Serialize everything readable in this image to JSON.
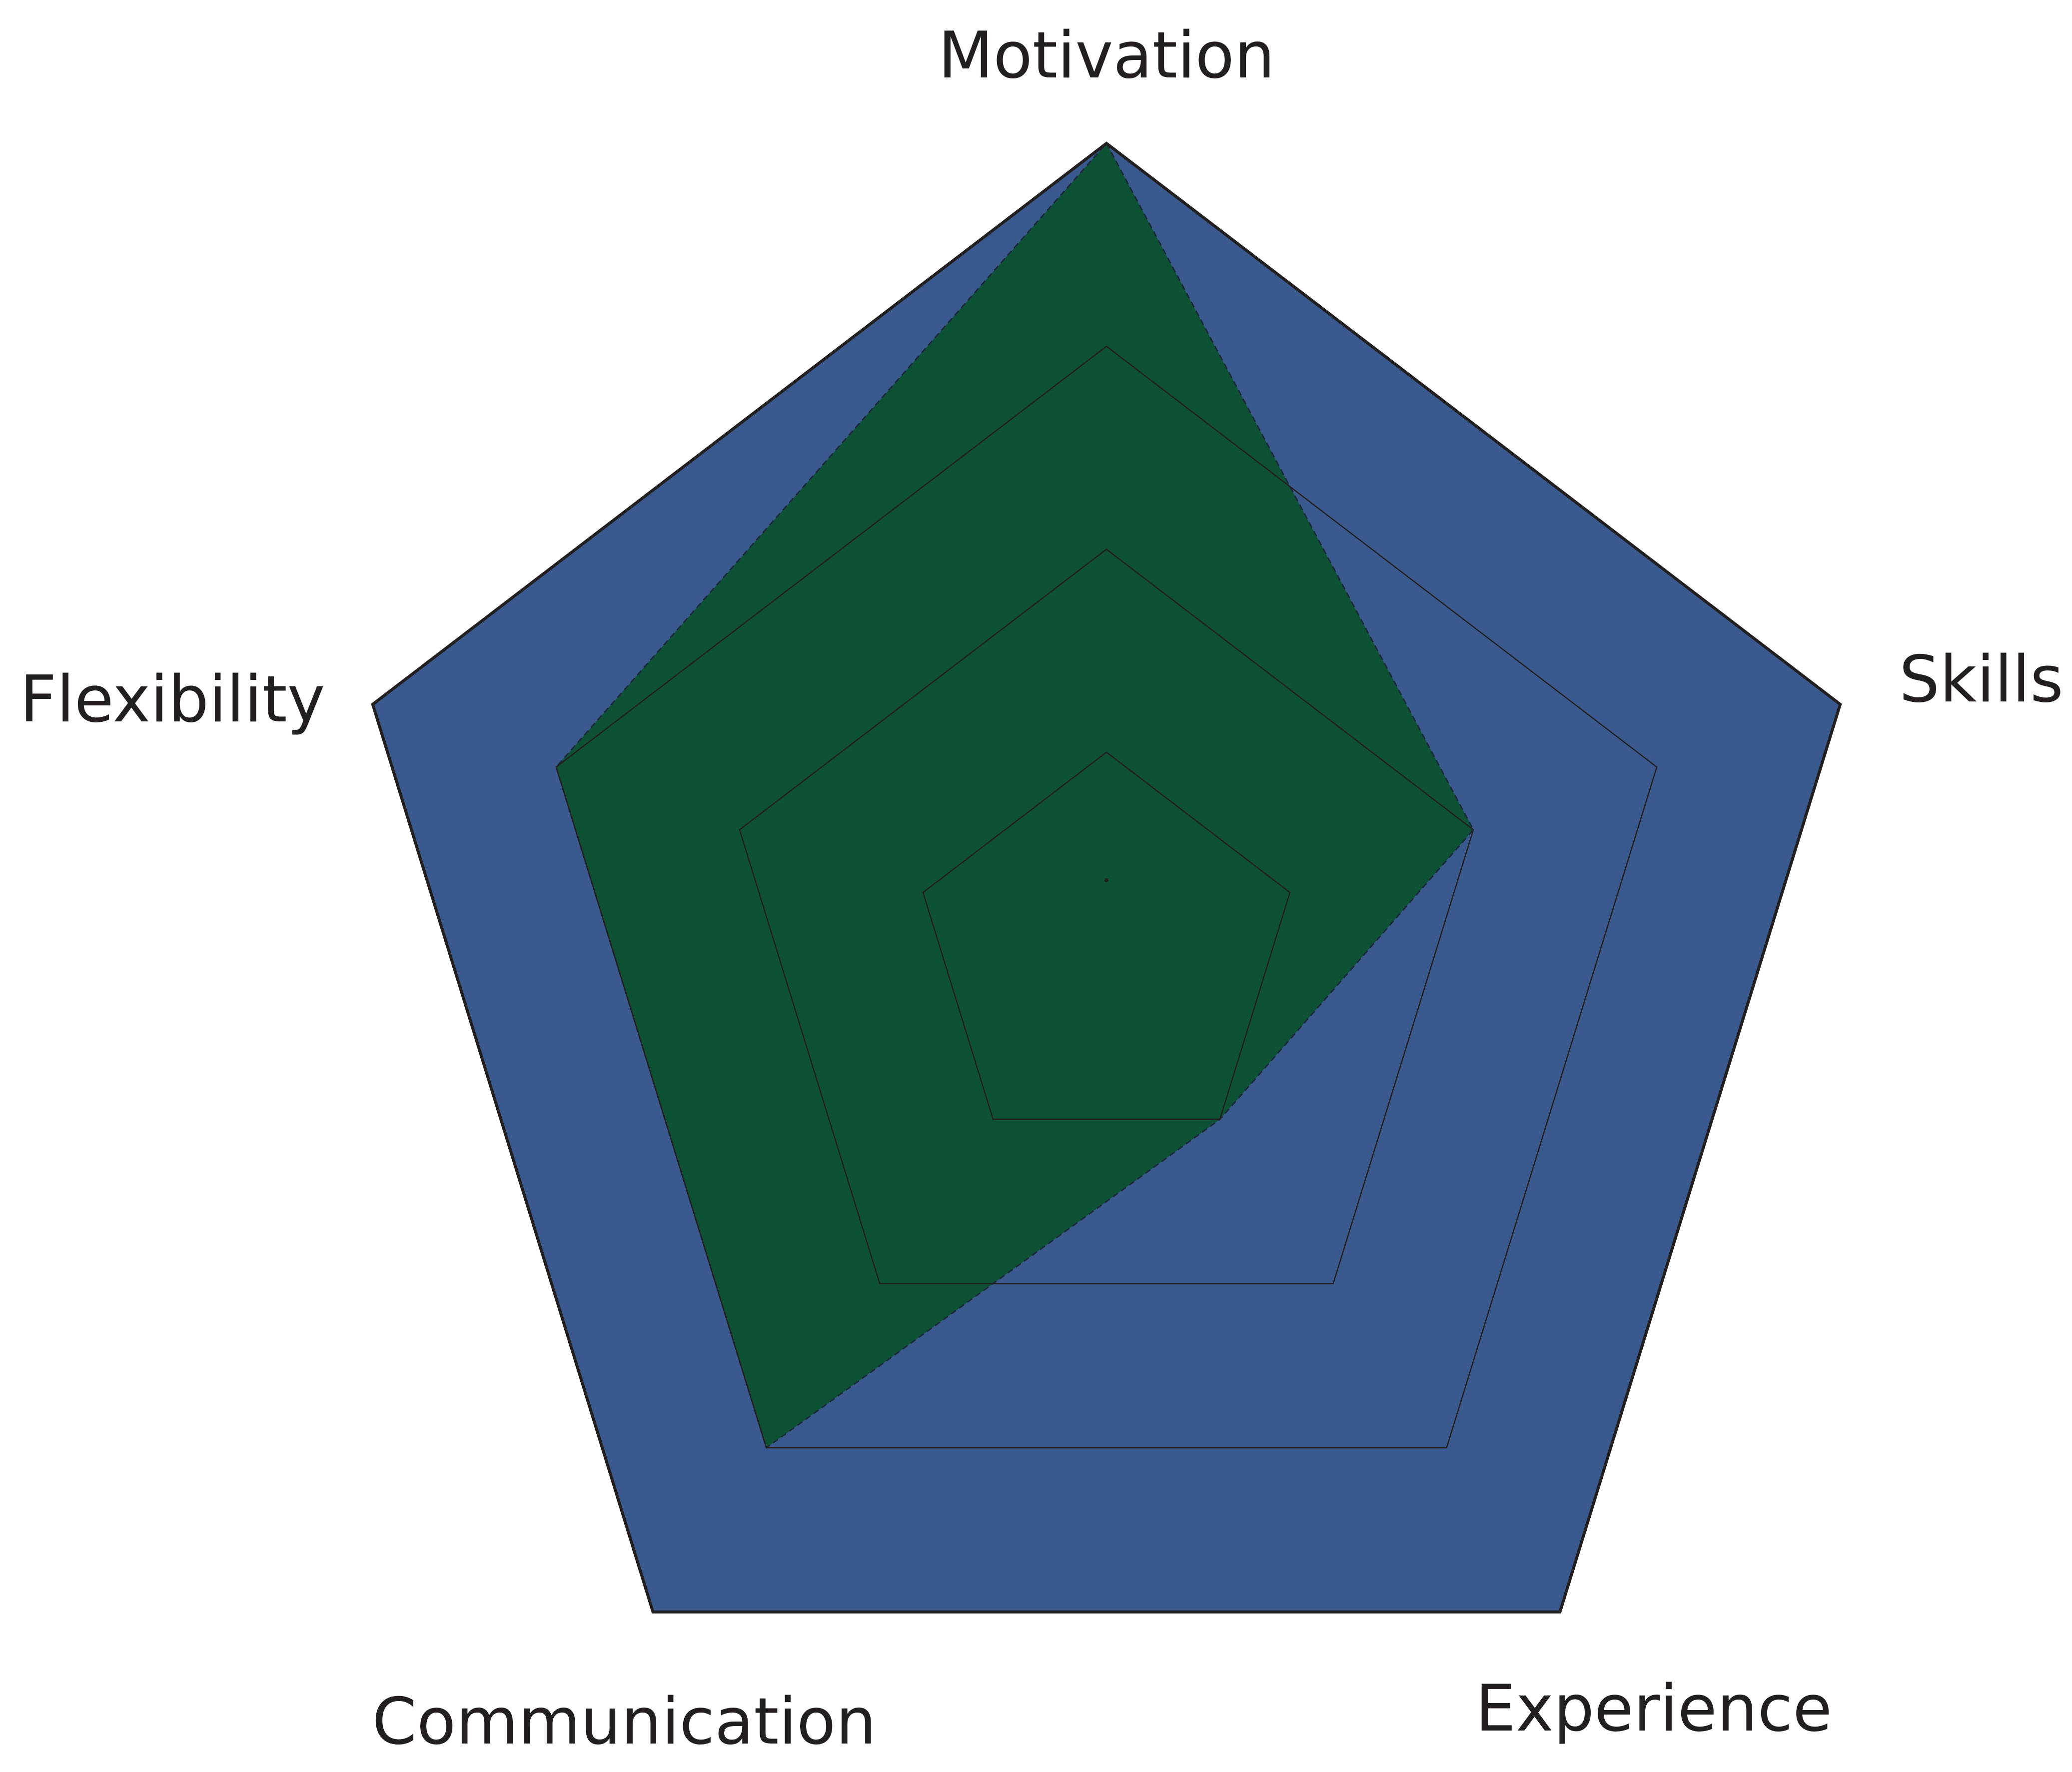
{
  "chart_data": {
    "type": "radar",
    "categories": [
      "Motivation",
      "Skills",
      "Experience",
      "Communication",
      "Flexibility"
    ],
    "values": [
      100,
      50,
      25,
      75,
      75
    ],
    "color": "#0e5235",
    "background_color": "#3a5a8f",
    "rlim": [
      0,
      100
    ],
    "rticks": [
      25,
      50,
      75,
      100
    ],
    "grid": true
  }
}
